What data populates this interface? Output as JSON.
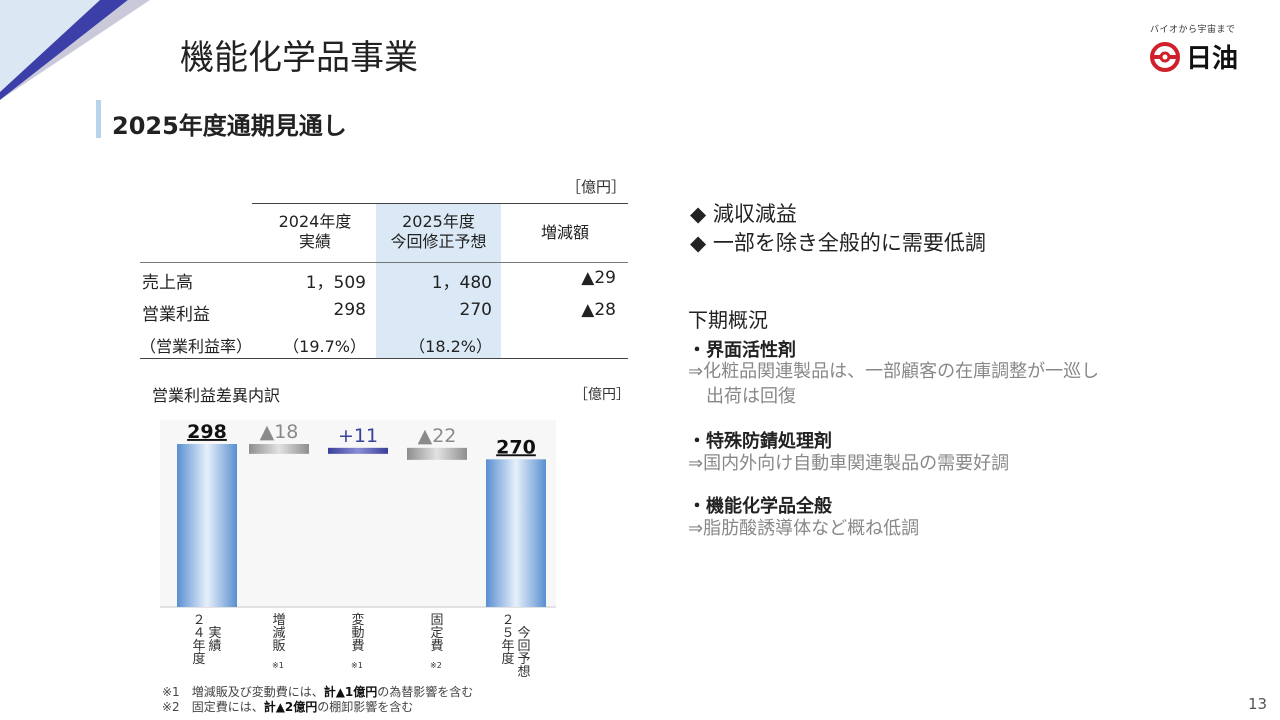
{
  "header": {
    "title": "機能化学品事業",
    "section_title": "2025年度通期見通し",
    "logo_tagline": "バイオから宇宙まで",
    "logo_name": "日油"
  },
  "table": {
    "unit": "［億円］",
    "col_2024_line1": "2024年度",
    "col_2024_line2": "実績",
    "col_2025_line1": "2025年度",
    "col_2025_line2": "今回修正予想",
    "col_diff": "増減額",
    "rows": [
      {
        "label": "売上高",
        "v2024": "1，509",
        "v2025": "1，480",
        "diff": "▲29"
      },
      {
        "label": "営業利益",
        "v2024": "298",
        "v2025": "270",
        "diff": "▲28"
      },
      {
        "label": "（営業利益率）",
        "v2024": "（19.7%）",
        "v2025": "（18.2%）",
        "diff": ""
      }
    ]
  },
  "chart_data": {
    "type": "waterfall",
    "title": "営業利益差異内訳",
    "unit": "［億円］",
    "categories": [
      "24年度実績",
      "増減販",
      "変動費",
      "固定費",
      "25年度今回予想"
    ],
    "category_lines": [
      [
        "２",
        "４",
        "年",
        "度",
        "実",
        "績"
      ],
      [
        "増",
        "減",
        "販"
      ],
      [
        "変",
        "動",
        "費"
      ],
      [
        "固",
        "定",
        "費"
      ],
      [
        "２",
        "５",
        "年",
        "度",
        "今",
        "回",
        "予",
        "想"
      ]
    ],
    "category_notes": [
      "",
      "※1",
      "※1",
      "※2",
      ""
    ],
    "values": [
      298,
      -18,
      11,
      -22,
      270
    ],
    "value_labels": [
      "298",
      "▲18",
      "+11",
      "▲22",
      "270"
    ],
    "kinds": [
      "total",
      "delta",
      "delta",
      "delta",
      "total"
    ],
    "colors": {
      "total": "#5a8fd0",
      "negative": "#9a9a9a",
      "positive": "#3a3f9a"
    }
  },
  "footnotes": [
    {
      "pre": "※1　増減販及び変動費には、",
      "bold": "計▲1億円",
      "post": "の為替影響を含む"
    },
    {
      "pre": "※2　固定費には、",
      "bold": "計▲2億円",
      "post": "の棚卸影響を含む"
    }
  ],
  "summary": {
    "bullets": [
      "◆ 減収減益",
      "◆ 一部を除き全般的に需要低調"
    ],
    "sub_title": "下期概況",
    "items": [
      {
        "head": "・界面活性剤",
        "lines": [
          "⇒化粧品関連製品は、一部顧客の在庫調整が一巡し",
          "　出荷は回復"
        ]
      },
      {
        "head": "・特殊防錆処理剤",
        "lines": [
          "⇒国内外向け自動車関連製品の需要好調"
        ]
      },
      {
        "head": "・機能化学品全般",
        "lines": [
          "⇒脂肪酸誘導体など概ね低調"
        ]
      }
    ]
  },
  "page_number": "13"
}
